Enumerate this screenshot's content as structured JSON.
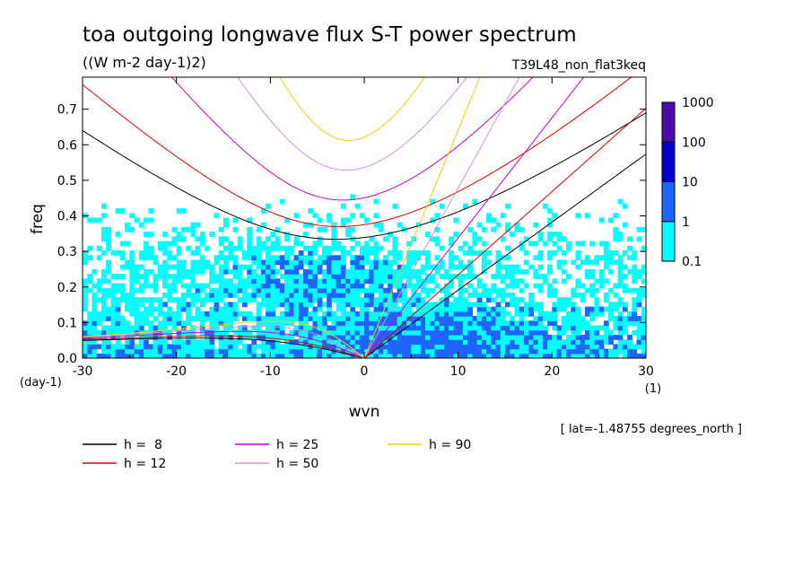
{
  "chart_data": {
    "type": "heatmap",
    "title": "toa outgoing longwave flux S-T power spectrum",
    "subtitle": "((W m-2 day-1)2)",
    "run_label": "T39L48_non_flat3keq",
    "xlabel": "wvn",
    "ylabel": "freq",
    "x_unit": "(1)",
    "y_unit": "(day-1)",
    "xlim": [
      -30,
      30
    ],
    "ylim": [
      0,
      0.79
    ],
    "x_ticks": [
      -30,
      -20,
      -10,
      0,
      10,
      20,
      30
    ],
    "x_tick_labels": [
      "-30",
      "-20",
      "-10",
      "0",
      "10",
      "20",
      "30"
    ],
    "y_ticks": [
      0.0,
      0.1,
      0.2,
      0.3,
      0.4,
      0.5,
      0.6,
      0.7
    ],
    "y_tick_labels": [
      "0.0",
      "0.1",
      "0.2",
      "0.3",
      "0.4",
      "0.5",
      "0.6",
      "0.7"
    ],
    "annotation": "[ lat=-1.48755 degrees_north ]",
    "colorbar": {
      "levels": [
        "0.1",
        "1",
        "10",
        "100",
        "1000"
      ],
      "colors": [
        "#00ffff",
        "#1e64ff",
        "#0000c8",
        "#4b0aaa"
      ],
      "scale": "log"
    },
    "shaded_field_description_values": {
      "low_freq_band_max_level": "10",
      "high_freq_background_level": "0.1"
    },
    "dispersion_curves": [
      {
        "name": "h =  8",
        "h": 8,
        "color": "#000000"
      },
      {
        "name": "h = 12",
        "h": 12,
        "color": "#e00000"
      },
      {
        "name": "h = 25",
        "h": 25,
        "color": "#d000c0"
      },
      {
        "name": "h = 50",
        "h": 50,
        "color": "#d890e8"
      },
      {
        "name": "h = 90",
        "h": 90,
        "color": "#f0d000"
      }
    ],
    "grid": false,
    "legend_position": "bottom-left"
  }
}
